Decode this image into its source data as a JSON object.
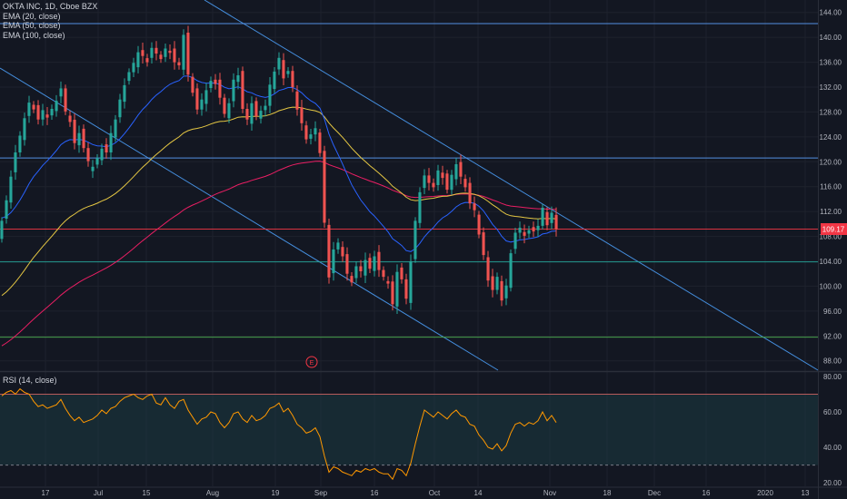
{
  "header": {
    "symbol_line": "OKTA INC, 1D, Cboe BZX",
    "indicators": [
      "EMA (20, close)",
      "EMA (50, close)",
      "EMA (100, close)"
    ],
    "rsi_label": "RSI (14, close)"
  },
  "price_badge": "109.17",
  "earnings_marker": "E",
  "chart_data": [
    {
      "type": "candlestick",
      "x_axis_labels": [
        "17",
        "Jul",
        "15",
        "Aug",
        "19",
        "Sep",
        "16",
        "Oct",
        "14",
        "Nov",
        "18",
        "Dec",
        "16",
        "2020",
        "13"
      ],
      "y_ticks": [
        88,
        92,
        96,
        100,
        104,
        108,
        112,
        116,
        120,
        124,
        128,
        132,
        136,
        140,
        144
      ],
      "y_tick_labels": [
        "88.00",
        "92.00",
        "96.00",
        "100.00",
        "104.00",
        "108.00",
        "112.00",
        "116.00",
        "120.00",
        "124.00",
        "128.00",
        "132.00",
        "136.00",
        "140.00",
        "144.00"
      ],
      "ylim": [
        86.5,
        146
      ],
      "last_price": 109.17,
      "horizontal_levels": [
        {
          "value": 142.2,
          "color": "#5b9cf6"
        },
        {
          "value": 120.6,
          "color": "#5b9cf6"
        },
        {
          "value": 109.17,
          "color": "#f23645"
        },
        {
          "value": 103.9,
          "color": "#26a69a"
        },
        {
          "value": 91.8,
          "color": "#4caf50"
        }
      ],
      "closes": [
        110.5,
        113.8,
        117.6,
        121.5,
        124.2,
        127.0,
        129.5,
        128.4,
        126.8,
        128.3,
        127.1,
        128.5,
        129.8,
        131.8,
        128.1,
        126.4,
        123.0,
        124.6,
        122.2,
        120.1,
        119.2,
        120.6,
        122.1,
        121.5,
        124.6,
        126.8,
        130.0,
        132.3,
        134.4,
        135.9,
        137.6,
        137.0,
        136.0,
        138.3,
        137.4,
        136.5,
        138.2,
        137.5,
        136.0,
        135.5,
        140.4,
        134.0,
        131.1,
        128.4,
        130.0,
        131.5,
        133.0,
        132.5,
        130.3,
        127.7,
        129.4,
        133.2,
        133.9,
        128.5,
        126.8,
        129.4,
        127.3,
        128.2,
        129.0,
        132.4,
        134.5,
        136.7,
        133.4,
        134.6,
        132.0,
        128.4,
        126.2,
        123.6,
        124.4,
        125.4,
        121.4,
        110.2,
        101.4,
        105.9,
        107.0,
        104.8,
        102.0,
        100.6,
        103.2,
        102.4,
        104.2,
        102.8,
        104.8,
        102.6,
        101.5,
        100.4,
        97.1,
        102.3,
        101.1,
        98.0,
        104.0,
        110.5,
        115.1,
        117.8,
        116.6,
        115.9,
        118.6,
        117.4,
        115.5,
        117.9,
        119.6,
        117.6,
        115.9,
        113.3,
        112.2,
        108.3,
        105.0,
        100.9,
        99.4,
        101.5,
        97.7,
        100.1,
        105.3,
        108.6,
        109.4,
        108.1,
        109.0,
        108.8,
        109.7,
        112.6,
        109.8,
        111.8,
        109.17
      ],
      "rsi": {
        "label": "RSI (14, close)",
        "upper": 70,
        "lower": 30,
        "ylim": [
          18,
          82
        ],
        "y_ticks": [
          20,
          40,
          60,
          80
        ],
        "y_tick_labels": [
          "20.00",
          "40.00",
          "60.00",
          "80.00"
        ],
        "values": [
          69,
          71,
          72,
          70,
          73,
          71,
          70,
          66,
          63,
          64,
          62,
          63,
          64,
          67,
          62,
          58,
          55,
          57,
          54,
          55,
          56,
          58,
          61,
          59,
          62,
          63,
          66,
          68,
          69,
          70,
          68,
          67,
          69,
          70,
          65,
          64,
          68,
          64,
          62,
          66,
          67,
          61,
          57,
          53,
          56,
          57,
          60,
          59,
          54,
          51,
          54,
          59,
          60,
          56,
          54,
          58,
          55,
          56,
          58,
          62,
          63,
          65,
          60,
          62,
          58,
          53,
          51,
          48,
          49,
          51,
          46,
          35,
          26,
          29,
          28,
          26,
          25,
          24,
          27,
          26,
          28,
          27,
          28,
          26,
          25,
          25,
          22,
          28,
          27,
          24,
          31,
          42,
          52,
          61,
          59,
          57,
          60,
          58,
          56,
          59,
          61,
          58,
          57,
          53,
          52,
          47,
          44,
          40,
          39,
          42,
          38,
          41,
          48,
          53,
          54,
          52,
          54,
          53,
          55,
          60,
          55,
          58,
          54
        ]
      },
      "colors": {
        "up": "#26a69a",
        "down": "#ef5350",
        "ema20": "#2962ff",
        "ema50": "#e5c743",
        "ema100": "#e91e63",
        "channel": "#4da3ff",
        "rsi_line": "#ff9800"
      }
    }
  ]
}
